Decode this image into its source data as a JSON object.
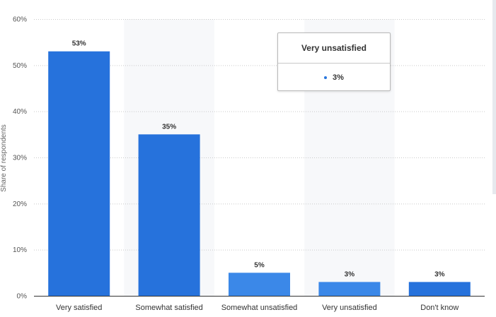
{
  "chart_data": {
    "type": "bar",
    "categories": [
      "Very satisfied",
      "Somewhat satisfied",
      "Somewhat unsatisfied",
      "Very unsatisfied",
      "Don't know"
    ],
    "values": [
      53,
      35,
      5,
      3,
      3
    ],
    "data_labels": [
      "53%",
      "35%",
      "5%",
      "3%",
      "3%"
    ],
    "ylabel": "Share of respondents",
    "ylim": [
      0,
      60
    ],
    "yticks": [
      0,
      10,
      20,
      30,
      40,
      50,
      60
    ],
    "ytick_labels": [
      "0%",
      "10%",
      "20%",
      "30%",
      "40%",
      "50%",
      "60%"
    ],
    "grid": true,
    "bar_colors": [
      "#2672dc",
      "#2672dc",
      "#3b88e8",
      "#3b88e8",
      "#2672dc"
    ]
  },
  "tooltip": {
    "title": "Very unsatisfied",
    "value": "3%",
    "dot_color": "#2876dd"
  }
}
